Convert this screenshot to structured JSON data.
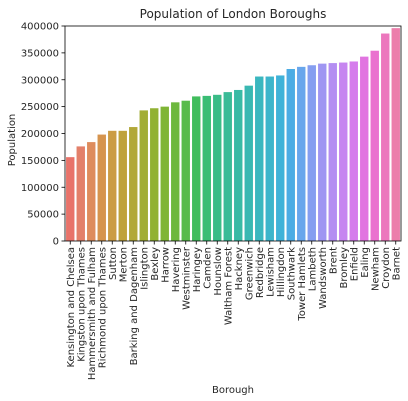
{
  "chart_data": {
    "type": "bar",
    "title": "Population of London Boroughs",
    "xlabel": "Borough",
    "ylabel": "Population",
    "ylim": [
      0,
      400000
    ],
    "yticks": [
      0,
      50000,
      100000,
      150000,
      200000,
      250000,
      300000,
      350000,
      400000
    ],
    "ytick_labels": [
      "0",
      "50000",
      "100000",
      "150000",
      "200000",
      "250000",
      "300000",
      "350000",
      "400000"
    ],
    "grid": false,
    "categories": [
      "Kensington and Chelsea",
      "Kingston upon Thames",
      "Hammersmith and Fulham",
      "Richmond upon Thames",
      "Sutton",
      "Merton",
      "Barking and Dagenham",
      "Islington",
      "Bexley",
      "Harrow",
      "Havering",
      "Westminster",
      "Haringey",
      "Camden",
      "Hounslow",
      "Waltham Forest",
      "Hackney",
      "Greenwich",
      "Redbridge",
      "Lewisham",
      "Hillingdon",
      "Southwark",
      "Tower Hamlets",
      "Lambeth",
      "Wandsworth",
      "Brent",
      "Bromley",
      "Enfield",
      "Ealing",
      "Newham",
      "Croydon",
      "Barnet"
    ],
    "values": [
      156000,
      176000,
      184000,
      198000,
      205000,
      205000,
      212000,
      243000,
      247000,
      250000,
      258000,
      261000,
      269000,
      270000,
      272000,
      277000,
      281000,
      289000,
      306000,
      306000,
      308000,
      320000,
      324000,
      327000,
      330000,
      331000,
      332000,
      334000,
      343000,
      354000,
      386000,
      396000
    ],
    "colors": [
      "#e8736a",
      "#e3806a",
      "#de8c5d",
      "#d6944e",
      "#cb9c45",
      "#bfa23b",
      "#b2a839",
      "#a2ad36",
      "#91b133",
      "#7fb535",
      "#6db83e",
      "#58bb4b",
      "#41bd5d",
      "#39bd74",
      "#3abc87",
      "#3abb97",
      "#39baa5",
      "#39b8b2",
      "#3ab7bf",
      "#3cb5cb",
      "#3fb2d8",
      "#4cace4",
      "#68a6ec",
      "#859ef0",
      "#9f96f2",
      "#b48ef2",
      "#c685f0",
      "#d57cec",
      "#e174e0",
      "#ea72cf",
      "#ec77bd",
      "#ec7eab"
    ]
  }
}
